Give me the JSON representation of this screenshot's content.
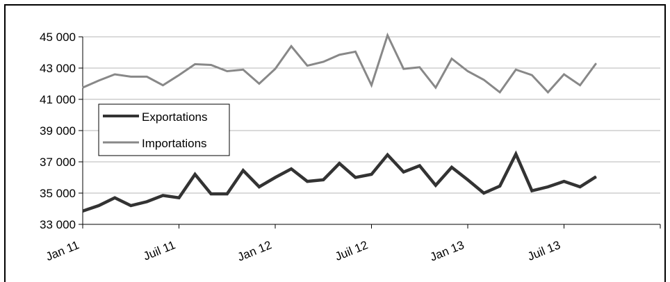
{
  "chart_data": {
    "type": "line",
    "title": "",
    "xlabel": "",
    "ylabel": "",
    "ylim": [
      33000,
      45000
    ],
    "yticks": [
      33000,
      35000,
      37000,
      39000,
      41000,
      43000,
      45000
    ],
    "ytick_labels": [
      "33 000",
      "35 000",
      "37 000",
      "39 000",
      "41 000",
      "43 000",
      "45 000"
    ],
    "x_tick_labels": [
      {
        "label": "Jan 11",
        "index": 0
      },
      {
        "label": "Juil 11",
        "index": 6
      },
      {
        "label": "Jan 12",
        "index": 12
      },
      {
        "label": "Juil 12",
        "index": 18
      },
      {
        "label": "Jan 13",
        "index": 24
      },
      {
        "label": "Juil 13",
        "index": 30
      }
    ],
    "x_count": 36,
    "grid": true,
    "legend_position": "left",
    "series": [
      {
        "name": "Exportations",
        "color": "#333333",
        "values": [
          33850,
          34200,
          34700,
          34200,
          34450,
          34850,
          34700,
          36200,
          34950,
          34950,
          36450,
          35400,
          36000,
          36550,
          35750,
          35850,
          36900,
          36000,
          36200,
          37450,
          36350,
          36750,
          35500,
          36650,
          35850,
          35000,
          35450,
          37500,
          35150,
          35400,
          35750,
          35400,
          36050
        ]
      },
      {
        "name": "Importations",
        "color": "#888888",
        "values": [
          41750,
          42200,
          42600,
          42450,
          42450,
          41900,
          42550,
          43250,
          43200,
          42800,
          42900,
          42000,
          42950,
          44400,
          43150,
          43400,
          43850,
          44050,
          41900,
          45100,
          42950,
          43050,
          41750,
          43600,
          42800,
          42250,
          41450,
          42900,
          42550,
          41450,
          42600,
          41900,
          43300
        ]
      }
    ]
  }
}
